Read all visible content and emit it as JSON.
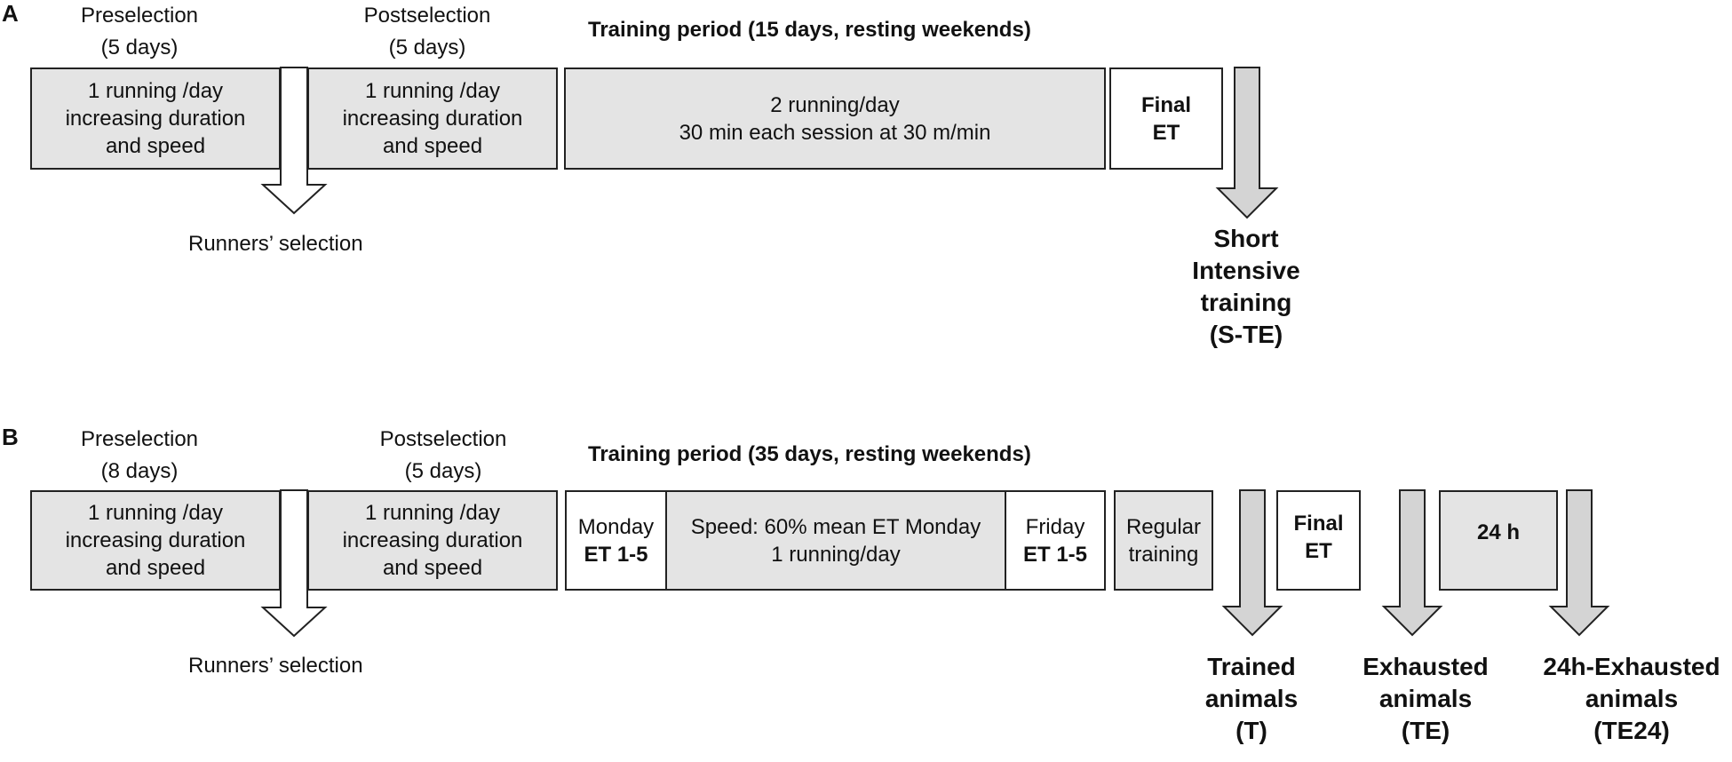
{
  "panel_a": {
    "label": "A",
    "preselection": {
      "title": "Preselection",
      "days": "(5 days)"
    },
    "postselection": {
      "title": "Postselection",
      "days": "(5 days)"
    },
    "training_title": "Training period (15 days, resting weekends)",
    "box_pre": [
      "1 running /day",
      "increasing duration",
      "and speed"
    ],
    "box_post": [
      "1 running /day",
      "increasing duration",
      "and speed"
    ],
    "box_training": [
      "2 running/day",
      "30 min each session at 30 m/min"
    ],
    "box_final": [
      "Final",
      "ET"
    ],
    "runners_selection": "Runners’ selection",
    "outcome": [
      "Short",
      "Intensive",
      "training",
      "(S-TE)"
    ]
  },
  "panel_b": {
    "label": "B",
    "preselection": {
      "title": "Preselection",
      "days": "(8 days)"
    },
    "postselection": {
      "title": "Postselection",
      "days": "(5 days)"
    },
    "training_title": "Training period (35 days, resting weekends)",
    "box_pre": [
      "1 running /day",
      "increasing duration",
      "and speed"
    ],
    "box_post": [
      "1 running /day",
      "increasing duration",
      "and speed"
    ],
    "box_monday": [
      "Monday",
      "ET 1-5"
    ],
    "box_speed": [
      "Speed: 60% mean ET Monday",
      "1 running/day"
    ],
    "box_friday": [
      "Friday",
      "ET 1-5"
    ],
    "box_regular": [
      "Regular",
      "training"
    ],
    "box_final": [
      "Final",
      "ET"
    ],
    "box_24h": "24 h",
    "runners_selection": "Runners’ selection",
    "outcome_trained": [
      "Trained",
      "animals",
      "(T)"
    ],
    "outcome_exhausted": [
      "Exhausted",
      "animals",
      "(TE)"
    ],
    "outcome_24h": [
      "24h-Exhausted",
      "animals",
      "(TE24)"
    ]
  },
  "colors": {
    "box_fill": "#e4e4e4",
    "arrow_fill": "#d4d4d4",
    "stroke": "#222222"
  }
}
